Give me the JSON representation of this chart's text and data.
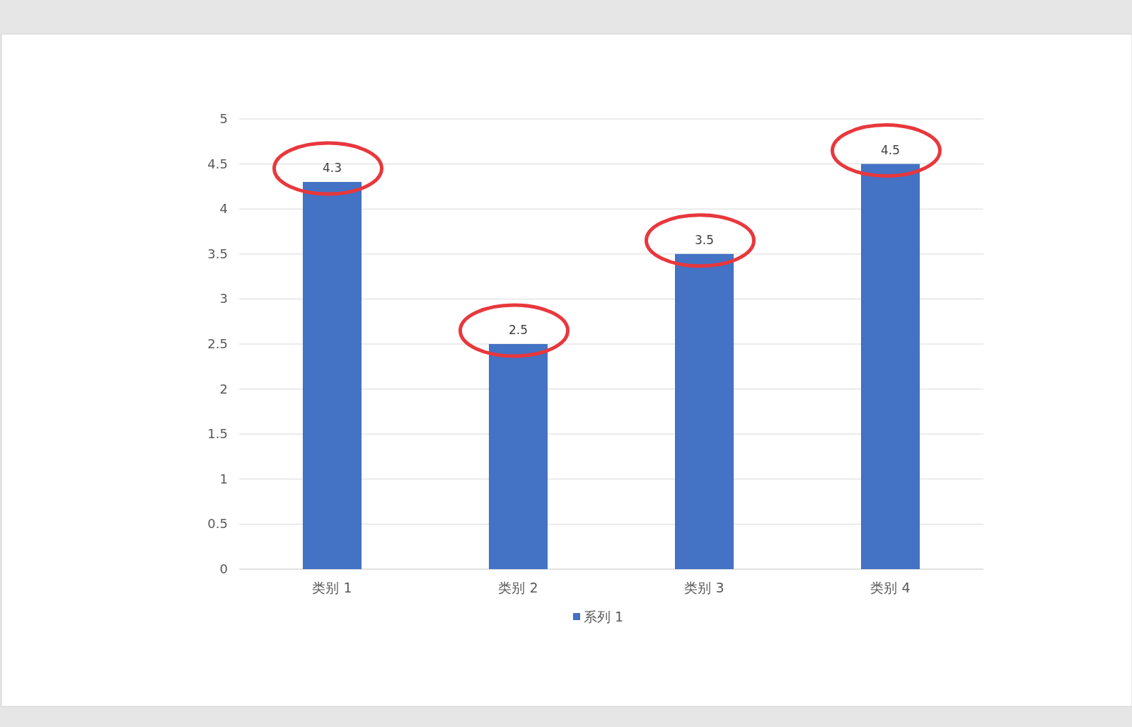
{
  "chart_data": {
    "type": "bar",
    "categories": [
      "类别 1",
      "类别 2",
      "类别 3",
      "类别 4"
    ],
    "series": [
      {
        "name": "系列 1",
        "color": "#4472c4",
        "values": [
          4.3,
          2.5,
          3.5,
          4.5
        ]
      }
    ],
    "ylim": [
      0,
      5
    ],
    "yticks": [
      0,
      0.5,
      1,
      1.5,
      2,
      2.5,
      3,
      3.5,
      4,
      4.5,
      5
    ],
    "grid": "y",
    "data_labels": true,
    "legend": "bottom"
  }
}
